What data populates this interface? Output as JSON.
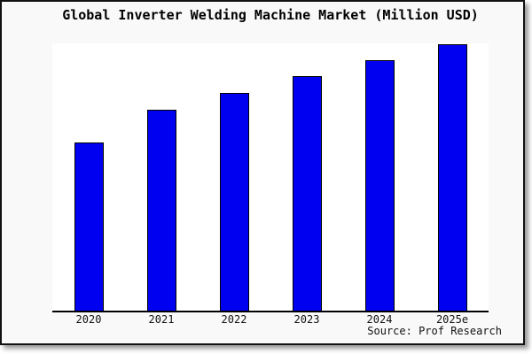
{
  "title": "Global Inverter Welding Machine Market (Million USD)",
  "source_label": "Source: Prof Research",
  "colors": {
    "bar_fill": "#0000f0",
    "bar_border": "#000000",
    "plot_bg": "#ffffff",
    "page_bg": "#f9f9f9",
    "axis_line": "#000000"
  },
  "chart_data": {
    "type": "bar",
    "title": "Global Inverter Welding Machine Market (Million USD)",
    "categories": [
      "2020",
      "2021",
      "2022",
      "2023",
      "2024",
      "2025e"
    ],
    "values": [
      62.8,
      75.2,
      81.6,
      87.7,
      93.7,
      100
    ],
    "value_scale": "relative (y-axis unlabeled; tallest bar = 100)",
    "xlabel": "",
    "ylabel": "",
    "ylim": [
      0,
      100.5
    ],
    "grid": false,
    "legend": null,
    "annotation": "Source: Prof Research"
  }
}
